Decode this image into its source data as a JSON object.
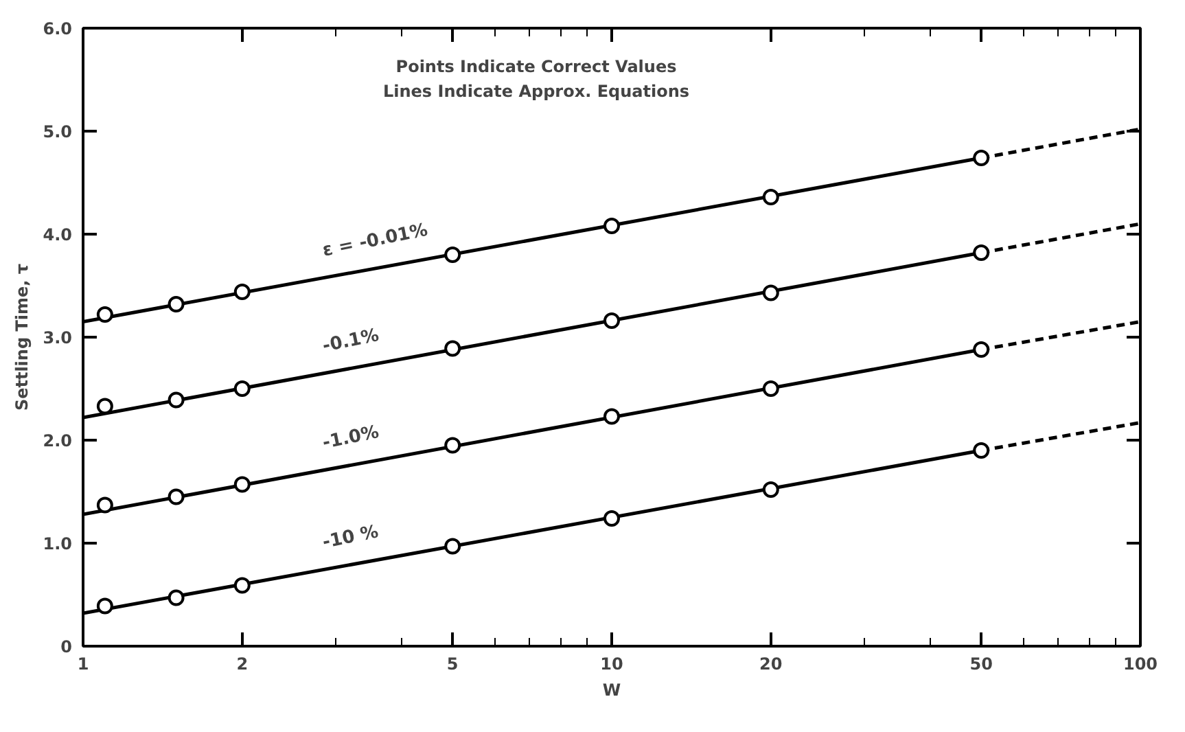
{
  "chart_data": {
    "type": "scatter",
    "xlabel": "W",
    "ylabel": "Settling Time, τ",
    "log": "x",
    "xlim": [
      1,
      100
    ],
    "ylim": [
      0,
      6
    ],
    "xticks": [
      1,
      2,
      {
        "value": 3,
        "label": null
      },
      {
        "value": 4,
        "label": null
      },
      5,
      {
        "value": 6,
        "label": null
      },
      {
        "value": 7,
        "label": null
      },
      {
        "value": 8,
        "label": null
      },
      {
        "value": 9,
        "label": null
      },
      10,
      20,
      {
        "value": 30,
        "label": null
      },
      {
        "value": 40,
        "label": null
      },
      50,
      {
        "value": 60,
        "label": null
      },
      {
        "value": 70,
        "label": null
      },
      {
        "value": 80,
        "label": null
      },
      {
        "value": 90,
        "label": null
      },
      100
    ],
    "yticks": [
      0,
      {
        "value": 1,
        "label": "1.0"
      },
      {
        "value": 2,
        "label": "2.0"
      },
      {
        "value": 3,
        "label": "3.0"
      },
      {
        "value": 4,
        "label": "4.0"
      },
      {
        "value": 5,
        "label": "5.0"
      },
      {
        "value": 6,
        "label": "6.0"
      }
    ],
    "grid": false,
    "series": [
      {
        "marker": "circle",
        "color": "#000000",
        "x": [
          1.1,
          1.5,
          2,
          5,
          10,
          20,
          50
        ],
        "values": [
          3.22,
          3.32,
          3.44,
          3.8,
          4.08,
          4.36,
          4.74
        ]
      },
      {
        "marker": "circle",
        "color": "#000000",
        "x": [
          1.1,
          1.5,
          2,
          5,
          10,
          20,
          50
        ],
        "values": [
          2.33,
          2.39,
          2.5,
          2.89,
          3.16,
          3.43,
          3.82
        ]
      },
      {
        "marker": "circle",
        "color": "#000000",
        "x": [
          1.1,
          1.5,
          2,
          5,
          10,
          20,
          50
        ],
        "values": [
          1.37,
          1.45,
          1.57,
          1.95,
          2.23,
          2.5,
          2.88
        ]
      },
      {
        "marker": "circle",
        "color": "#000000",
        "x": [
          1.1,
          1.5,
          2,
          5,
          10,
          20,
          50
        ],
        "values": [
          0.39,
          0.47,
          0.59,
          0.97,
          1.24,
          1.52,
          1.9
        ]
      },
      {
        "type": "line",
        "name": "ε = -0.01%",
        "line_style": "solid",
        "color": "#000000",
        "x": [
          1,
          50
        ],
        "values": [
          3.15,
          4.74
        ]
      },
      {
        "type": "line",
        "line_style": "dashed",
        "color": "#000000",
        "x": [
          50,
          100
        ],
        "values": [
          4.74,
          5.02
        ]
      },
      {
        "type": "line",
        "name": "-0.1%",
        "line_style": "solid",
        "color": "#000000",
        "x": [
          1,
          50
        ],
        "values": [
          2.22,
          3.82
        ]
      },
      {
        "type": "line",
        "line_style": "dashed",
        "color": "#000000",
        "x": [
          50,
          100
        ],
        "values": [
          3.82,
          4.1
        ]
      },
      {
        "type": "line",
        "name": "-1.0%",
        "line_style": "solid",
        "color": "#000000",
        "x": [
          1,
          50
        ],
        "values": [
          1.28,
          2.88
        ]
      },
      {
        "type": "line",
        "line_style": "dashed",
        "color": "#000000",
        "x": [
          50,
          100
        ],
        "values": [
          2.88,
          3.15
        ]
      },
      {
        "type": "line",
        "name": "-10 %",
        "line_style": "solid",
        "color": "#000000",
        "x": [
          1,
          50
        ],
        "values": [
          0.32,
          1.9
        ]
      },
      {
        "type": "line",
        "line_style": "dashed",
        "color": "#000000",
        "x": [
          50,
          100
        ],
        "values": [
          1.9,
          2.17
        ]
      }
    ],
    "annotations": [
      "Points Indicate Correct Values",
      "Lines Indicate Approx. Equations"
    ]
  }
}
